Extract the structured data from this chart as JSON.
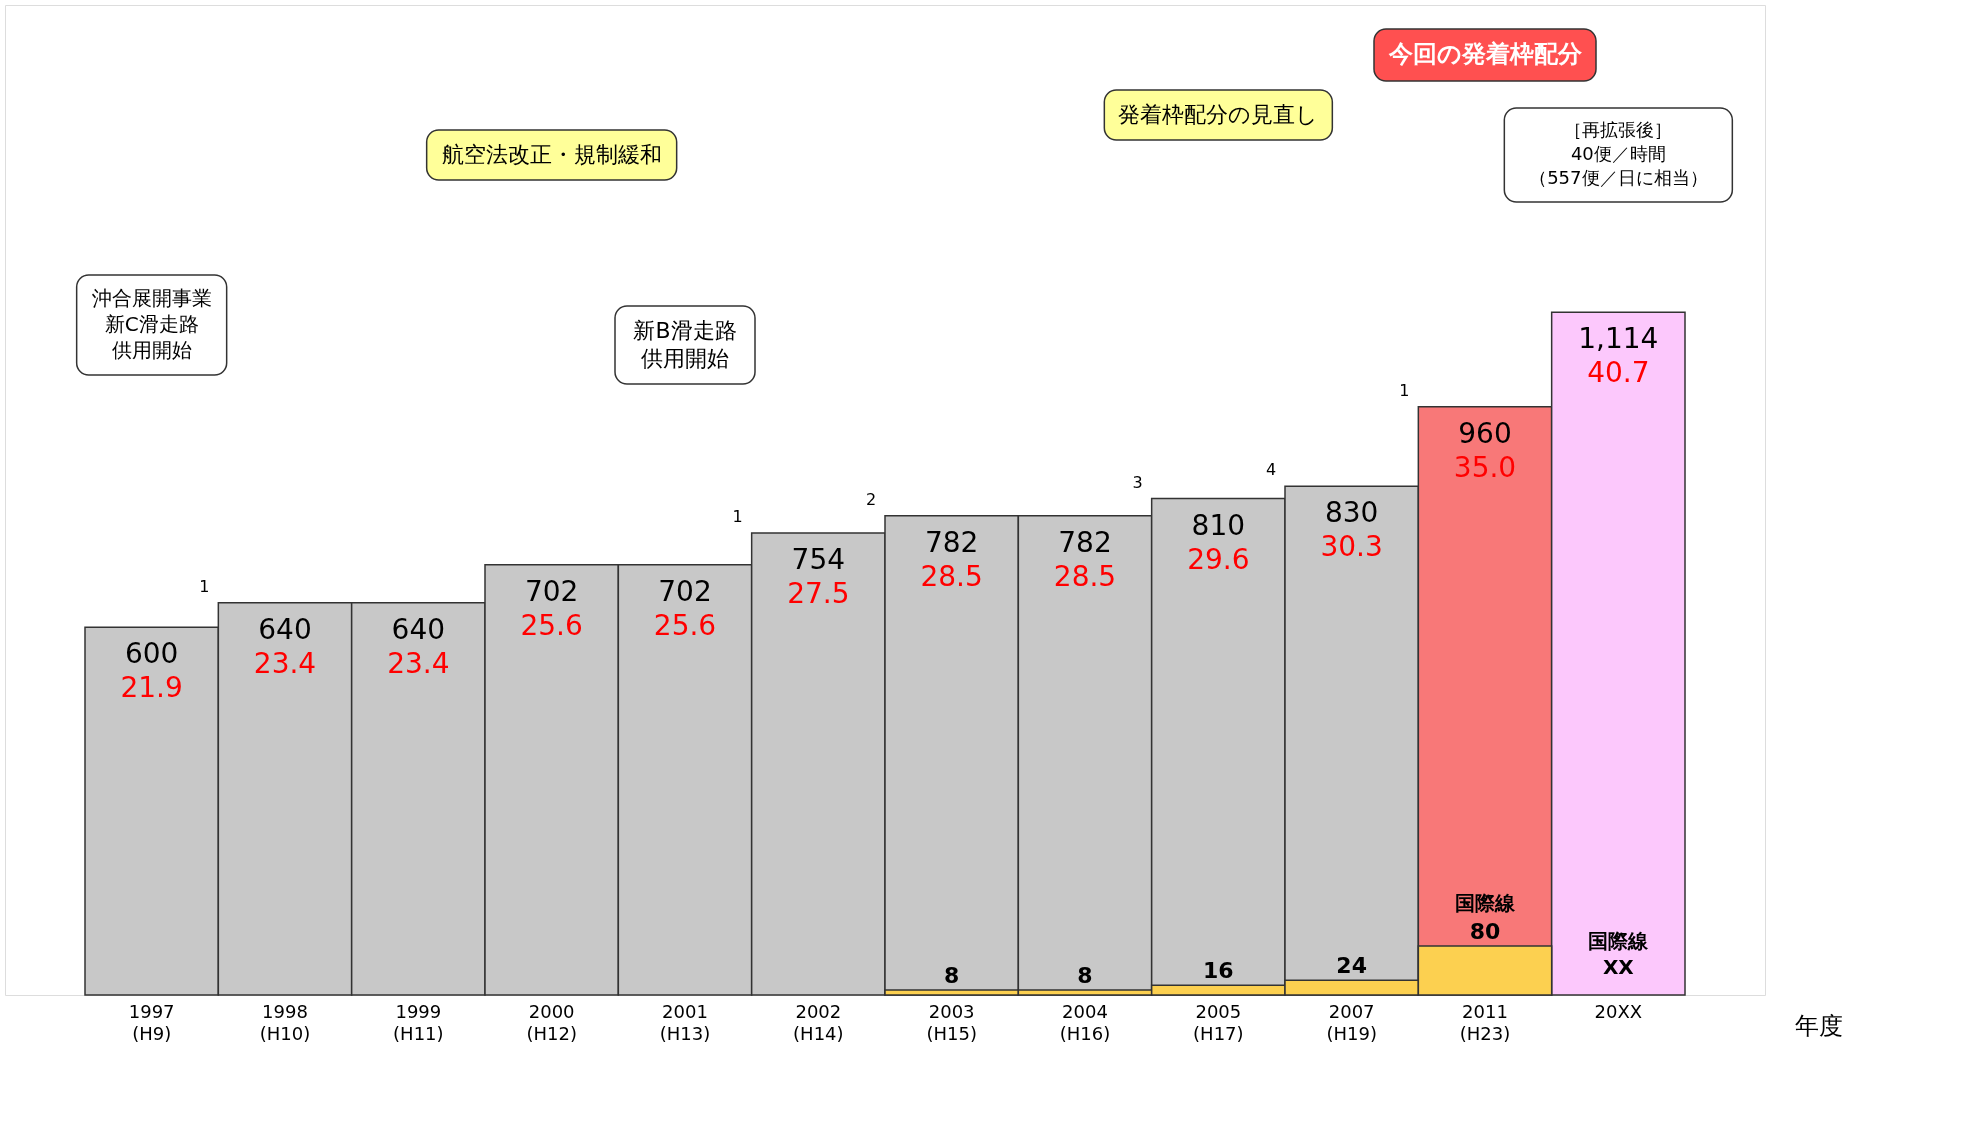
{
  "chart_data": {
    "type": "bar",
    "xlabel": "年度",
    "categories": [
      "1997\n(H9)",
      "1998\n(H10)",
      "1999\n(H11)",
      "2000\n(H12)",
      "2001\n(H13)",
      "2002\n(H14)",
      "2003\n(H15)",
      "2004\n(H16)",
      "2005\n(H17)",
      "2007\n(H19)",
      "2011\n(H23)",
      "20XX"
    ],
    "series": [
      {
        "colors": [
          "#c8c8c8",
          "#c8c8c8",
          "#c8c8c8",
          "#c8c8c8",
          "#c8c8c8",
          "#c8c8c8",
          "#c8c8c8",
          "#c8c8c8",
          "#c8c8c8",
          "#c8c8c8",
          "#f87878",
          "#fcc8fc"
        ],
        "values": [
          600,
          640,
          640,
          702,
          702,
          754,
          782,
          782,
          810,
          830,
          960,
          1114
        ],
        "value_labels": [
          "600",
          "640",
          "640",
          "702",
          "702",
          "754",
          "782",
          "782",
          "810",
          "830",
          "960",
          "1,114"
        ]
      },
      {
        "name": "国際線",
        "color": "#fcd050",
        "values": [
          null,
          null,
          null,
          null,
          null,
          null,
          8,
          8,
          16,
          24,
          80,
          null
        ]
      }
    ],
    "data_labels": true,
    "grid": false,
    "tick_labels": "x",
    "annotations": [
      {
        "text": "21.9",
        "x": "1997\n(H9)",
        "y": 600
      },
      {
        "text": "23.4",
        "x": "1998\n(H10)",
        "y": 640
      },
      {
        "text": "23.4",
        "x": "1999\n(H11)",
        "y": 640
      },
      {
        "text": "25.6",
        "x": "2000\n(H12)",
        "y": 702
      },
      {
        "text": "25.6",
        "x": "2001\n(H13)",
        "y": 702
      },
      {
        "text": "27.5",
        "x": "2002\n(H14)",
        "y": 754
      },
      {
        "text": "28.5",
        "x": "2003\n(H15)",
        "y": 782
      },
      {
        "text": "28.5",
        "x": "2004\n(H16)",
        "y": 782
      },
      {
        "text": "29.6",
        "x": "2005\n(H17)",
        "y": 810
      },
      {
        "text": "30.3",
        "x": "2007\n(H19)",
        "y": 830
      },
      {
        "text": "35.0",
        "x": "2011\n(H23)",
        "y": 960
      },
      {
        "text": "40.7",
        "x": "20XX",
        "y": 1114
      },
      "1",
      "1",
      "2",
      "3",
      "4",
      "1",
      "沖合展開事業新C滑走路供用開始",
      "航空法改正・規制緩和",
      "新B滑走路供用開始",
      "発着枠配分の見直し",
      "今回の発着枠配分",
      "［再拡張後］40便／時間（557便／日に相当）",
      "国際線XX"
    ]
  }
}
